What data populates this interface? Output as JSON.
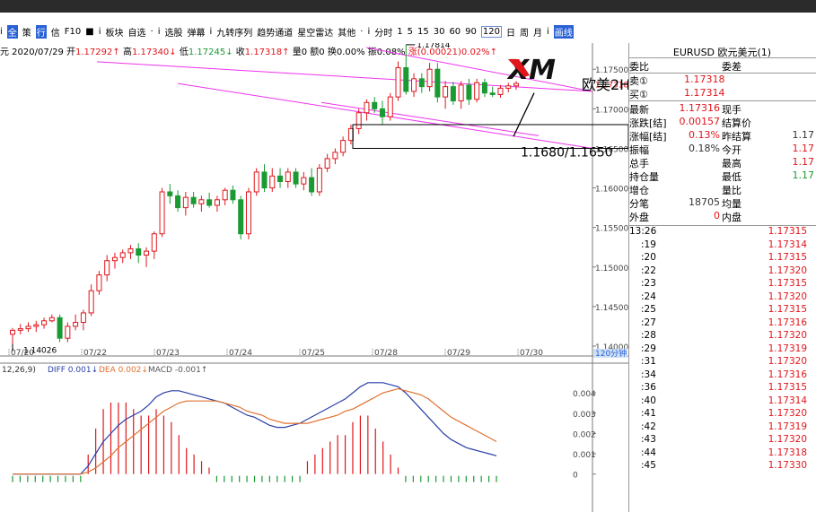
{
  "toolbar": {
    "items": [
      "i",
      "全",
      "策",
      "行",
      "信",
      "F10",
      "■",
      "i",
      "板块",
      "自选",
      "·",
      "i",
      "选股",
      "弹幕",
      "i",
      "九转序列",
      "趋势通道",
      "星空雷达",
      "其他",
      "·",
      "i",
      "分时",
      "1",
      "5",
      "15",
      "30",
      "60",
      "90",
      "120",
      "日",
      "周",
      "月",
      "i",
      "画线"
    ],
    "selected_period": "120"
  },
  "infobar": {
    "prefix": "元 2020/07/29",
    "open_label": "开",
    "open": "1.17292↑",
    "high_label": "高",
    "high": "1.17340↓",
    "low_label": "低",
    "low": "1.17245↓",
    "close_label": "收",
    "close": "1.17318↑",
    "vol": "量0",
    "amt": "额0",
    "turnover": "换0.00%",
    "amp": "振0.08%",
    "chg_label": "涨",
    "chg": "(0.00021)0.02%↑"
  },
  "colors": {
    "up": "#e0161c",
    "down": "#1a9a33",
    "channel": "#ee33ee",
    "diff": "#2a3fa8",
    "dea": "#e07030",
    "axis": "#7a7a7a"
  },
  "chart_data": [
    {
      "type": "candlestick",
      "title": "",
      "period": "120分钟",
      "ylim": [
        1.14,
        1.1765
      ],
      "y_ticks": [
        "1.14000",
        "1.14500",
        "1.15000",
        "1.15500",
        "1.16000",
        "1.16500",
        "1.17000",
        "1.17500"
      ],
      "x_ticks": [
        "07/20",
        "07/22",
        "07/23",
        "07/24",
        "07/25",
        "07/28",
        "07/29",
        "07/30"
      ],
      "labels": {
        "high_mark": "1.17814",
        "low_mark": "1.14026",
        "last_price": "1.17318",
        "period_label": "120分钟"
      },
      "candles": [
        [
          1.1415,
          1.1423,
          1.1403,
          1.142
        ],
        [
          1.142,
          1.1428,
          1.1415,
          1.1422
        ],
        [
          1.1422,
          1.143,
          1.1418,
          1.1425
        ],
        [
          1.1425,
          1.1432,
          1.1418,
          1.1427
        ],
        [
          1.1427,
          1.1436,
          1.1422,
          1.1432
        ],
        [
          1.1432,
          1.144,
          1.143,
          1.1436
        ],
        [
          1.1436,
          1.144,
          1.1405,
          1.141
        ],
        [
          1.141,
          1.143,
          1.1405,
          1.1425
        ],
        [
          1.1425,
          1.144,
          1.142,
          1.143
        ],
        [
          1.143,
          1.1446,
          1.142,
          1.1442
        ],
        [
          1.1442,
          1.1478,
          1.1438,
          1.147
        ],
        [
          1.147,
          1.1495,
          1.1465,
          1.149
        ],
        [
          1.149,
          1.1515,
          1.1482,
          1.1508
        ],
        [
          1.1508,
          1.1518,
          1.1498,
          1.1512
        ],
        [
          1.1512,
          1.1522,
          1.1505,
          1.1518
        ],
        [
          1.1518,
          1.1528,
          1.151,
          1.1523
        ],
        [
          1.1523,
          1.153,
          1.1505,
          1.1515
        ],
        [
          1.1515,
          1.1525,
          1.15,
          1.152
        ],
        [
          1.152,
          1.1545,
          1.151,
          1.1542
        ],
        [
          1.1542,
          1.16,
          1.1538,
          1.1595
        ],
        [
          1.1595,
          1.1605,
          1.158,
          1.159
        ],
        [
          1.159,
          1.1597,
          1.157,
          1.1575
        ],
        [
          1.1575,
          1.1595,
          1.1565,
          1.1588
        ],
        [
          1.1588,
          1.1595,
          1.1575,
          1.158
        ],
        [
          1.158,
          1.159,
          1.157,
          1.1585
        ],
        [
          1.1585,
          1.1594,
          1.1575,
          1.1578
        ],
        [
          1.1578,
          1.159,
          1.157,
          1.1585
        ],
        [
          1.1585,
          1.16,
          1.1578,
          1.1597
        ],
        [
          1.1597,
          1.1603,
          1.158,
          1.1585
        ],
        [
          1.1585,
          1.159,
          1.1535,
          1.1542
        ],
        [
          1.1542,
          1.16,
          1.1535,
          1.1595
        ],
        [
          1.1595,
          1.1625,
          1.159,
          1.162
        ],
        [
          1.162,
          1.163,
          1.1595,
          1.16
        ],
        [
          1.16,
          1.1625,
          1.1595,
          1.1615
        ],
        [
          1.1615,
          1.1625,
          1.16,
          1.1608
        ],
        [
          1.1608,
          1.1625,
          1.16,
          1.162
        ],
        [
          1.162,
          1.1625,
          1.16,
          1.1605
        ],
        [
          1.1605,
          1.162,
          1.1597,
          1.1613
        ],
        [
          1.1613,
          1.1625,
          1.159,
          1.1595
        ],
        [
          1.1595,
          1.163,
          1.159,
          1.1625
        ],
        [
          1.1625,
          1.1643,
          1.162,
          1.1637
        ],
        [
          1.1637,
          1.165,
          1.163,
          1.1645
        ],
        [
          1.1645,
          1.1665,
          1.164,
          1.166
        ],
        [
          1.166,
          1.168,
          1.1655,
          1.1675
        ],
        [
          1.1675,
          1.17,
          1.1668,
          1.1695
        ],
        [
          1.1695,
          1.1712,
          1.1685,
          1.1708
        ],
        [
          1.1708,
          1.1715,
          1.1695,
          1.17
        ],
        [
          1.17,
          1.171,
          1.168,
          1.169
        ],
        [
          1.169,
          1.172,
          1.1685,
          1.1715
        ],
        [
          1.1715,
          1.176,
          1.171,
          1.1752
        ],
        [
          1.1752,
          1.1781,
          1.1718,
          1.1722
        ],
        [
          1.1722,
          1.1745,
          1.1715,
          1.1738
        ],
        [
          1.1738,
          1.1745,
          1.172,
          1.1728
        ],
        [
          1.1728,
          1.1758,
          1.1722,
          1.175
        ],
        [
          1.175,
          1.1758,
          1.1708,
          1.1715
        ],
        [
          1.1715,
          1.1735,
          1.17,
          1.1728
        ],
        [
          1.1728,
          1.1734,
          1.1705,
          1.171
        ],
        [
          1.171,
          1.1735,
          1.17,
          1.173
        ],
        [
          1.173,
          1.1738,
          1.1705,
          1.1712
        ],
        [
          1.1712,
          1.1738,
          1.1708,
          1.1733
        ],
        [
          1.1733,
          1.1738,
          1.1715,
          1.172
        ],
        [
          1.172,
          1.1728,
          1.1715,
          1.1718
        ],
        [
          1.1718,
          1.173,
          1.1714,
          1.1726
        ],
        [
          1.1726,
          1.1733,
          1.1721,
          1.1729
        ],
        [
          1.1729,
          1.1735,
          1.1724,
          1.1732
        ]
      ]
    },
    {
      "type": "macd",
      "header_prefix": "12,26,9)",
      "diff_label": "DIFF 0.001↓",
      "dea_label": "DEA 0.002↓",
      "macd_label": "MACD -0.001↑",
      "ylim": [
        -0.0005,
        0.0048
      ],
      "y_ticks": [
        "0.004",
        "0.003",
        "0.002",
        "0.001",
        "0"
      ],
      "diff": [
        0.0,
        0.0,
        0.0,
        0.0,
        0.0,
        0.0,
        0.0,
        0.0,
        0.0,
        0.0,
        0.0004,
        0.001,
        0.0016,
        0.002,
        0.0024,
        0.0027,
        0.0029,
        0.0031,
        0.0034,
        0.0038,
        0.004,
        0.0041,
        0.0041,
        0.004,
        0.0039,
        0.0038,
        0.0037,
        0.0036,
        0.0035,
        0.0033,
        0.0031,
        0.0029,
        0.0028,
        0.0026,
        0.0024,
        0.0023,
        0.0023,
        0.0024,
        0.0025,
        0.0027,
        0.0029,
        0.0031,
        0.0033,
        0.0035,
        0.0037,
        0.004,
        0.0043,
        0.0045,
        0.0045,
        0.0045,
        0.0044,
        0.0043,
        0.004,
        0.0036,
        0.0032,
        0.0028,
        0.0024,
        0.002,
        0.0017,
        0.0015,
        0.0013,
        0.0012,
        0.0011,
        0.001,
        0.0009
      ],
      "dea": [
        0.0,
        0.0,
        0.0,
        0.0,
        0.0,
        0.0,
        0.0,
        0.0,
        0.0,
        0.0,
        0.0001,
        0.0003,
        0.0006,
        0.0009,
        0.0013,
        0.0016,
        0.0019,
        0.0022,
        0.0025,
        0.0028,
        0.0031,
        0.0033,
        0.0035,
        0.0036,
        0.0036,
        0.0036,
        0.0036,
        0.0036,
        0.0035,
        0.0034,
        0.0033,
        0.0031,
        0.003,
        0.0029,
        0.0027,
        0.0026,
        0.0025,
        0.0025,
        0.0025,
        0.0025,
        0.0026,
        0.0027,
        0.0028,
        0.0029,
        0.0031,
        0.0032,
        0.0034,
        0.0036,
        0.0038,
        0.004,
        0.0041,
        0.0042,
        0.0041,
        0.004,
        0.0039,
        0.0037,
        0.0034,
        0.0031,
        0.0028,
        0.0026,
        0.0024,
        0.0022,
        0.002,
        0.0018,
        0.0016
      ]
    }
  ],
  "annotations": {
    "logo_text": "XM",
    "label_2h": "欧美2H",
    "zone_text": "1.1680/1.1650"
  },
  "panel": {
    "title": "EURUSD 欧元美元(1)",
    "weibi": "委比",
    "weicha": "委差",
    "sell_label": "卖①",
    "sell": "1.17318",
    "buy_label": "买①",
    "buy": "1.17314",
    "rows": [
      {
        "l1": "最新",
        "v1": "1.17316",
        "c1": "up",
        "l2": "现手",
        "v2": "",
        "c2": "dk"
      },
      {
        "l1": "涨跌[结]",
        "v1": "0.00157",
        "c1": "up",
        "l2": "结算价",
        "v2": "",
        "c2": "dk"
      },
      {
        "l1": "涨幅[结]",
        "v1": "0.13%",
        "c1": "up",
        "l2": "昨结算",
        "v2": "1.17",
        "c2": "dk"
      },
      {
        "l1": "振幅",
        "v1": "0.18%",
        "c1": "dk",
        "l2": "今开",
        "v2": "1.17",
        "c2": "up"
      },
      {
        "l1": "总手",
        "v1": "",
        "c1": "dk",
        "l2": "最高",
        "v2": "1.17",
        "c2": "up"
      },
      {
        "l1": "持仓量",
        "v1": "",
        "c1": "dk",
        "l2": "最低",
        "v2": "1.17",
        "c2": "dn"
      },
      {
        "l1": "增仓",
        "v1": "",
        "c1": "dk",
        "l2": "量比",
        "v2": "",
        "c2": "dk"
      },
      {
        "l1": "分笔",
        "v1": "18705",
        "c1": "dk",
        "l2": "均量",
        "v2": "",
        "c2": "dk"
      },
      {
        "l1": "外盘",
        "v1": "0",
        "c1": "up",
        "l2": "内盘",
        "v2": "",
        "c2": "dk"
      }
    ],
    "ticks_header_time": "13:26",
    "ticks": [
      {
        "t": "",
        "p": "1.17315"
      },
      {
        "t": ":19",
        "p": "1.17314"
      },
      {
        "t": ":20",
        "p": "1.17315"
      },
      {
        "t": ":22",
        "p": "1.17320"
      },
      {
        "t": ":23",
        "p": "1.17315"
      },
      {
        "t": ":24",
        "p": "1.17320"
      },
      {
        "t": ":25",
        "p": "1.17315"
      },
      {
        "t": ":27",
        "p": "1.17316"
      },
      {
        "t": ":28",
        "p": "1.17320"
      },
      {
        "t": ":29",
        "p": "1.17319"
      },
      {
        "t": ":31",
        "p": "1.17320"
      },
      {
        "t": ":34",
        "p": "1.17316"
      },
      {
        "t": ":36",
        "p": "1.17315"
      },
      {
        "t": ":40",
        "p": "1.17314"
      },
      {
        "t": ":41",
        "p": "1.17320"
      },
      {
        "t": ":42",
        "p": "1.17319"
      },
      {
        "t": ":43",
        "p": "1.17320"
      },
      {
        "t": ":44",
        "p": "1.17318"
      },
      {
        "t": ":45",
        "p": "1.17330"
      }
    ]
  }
}
